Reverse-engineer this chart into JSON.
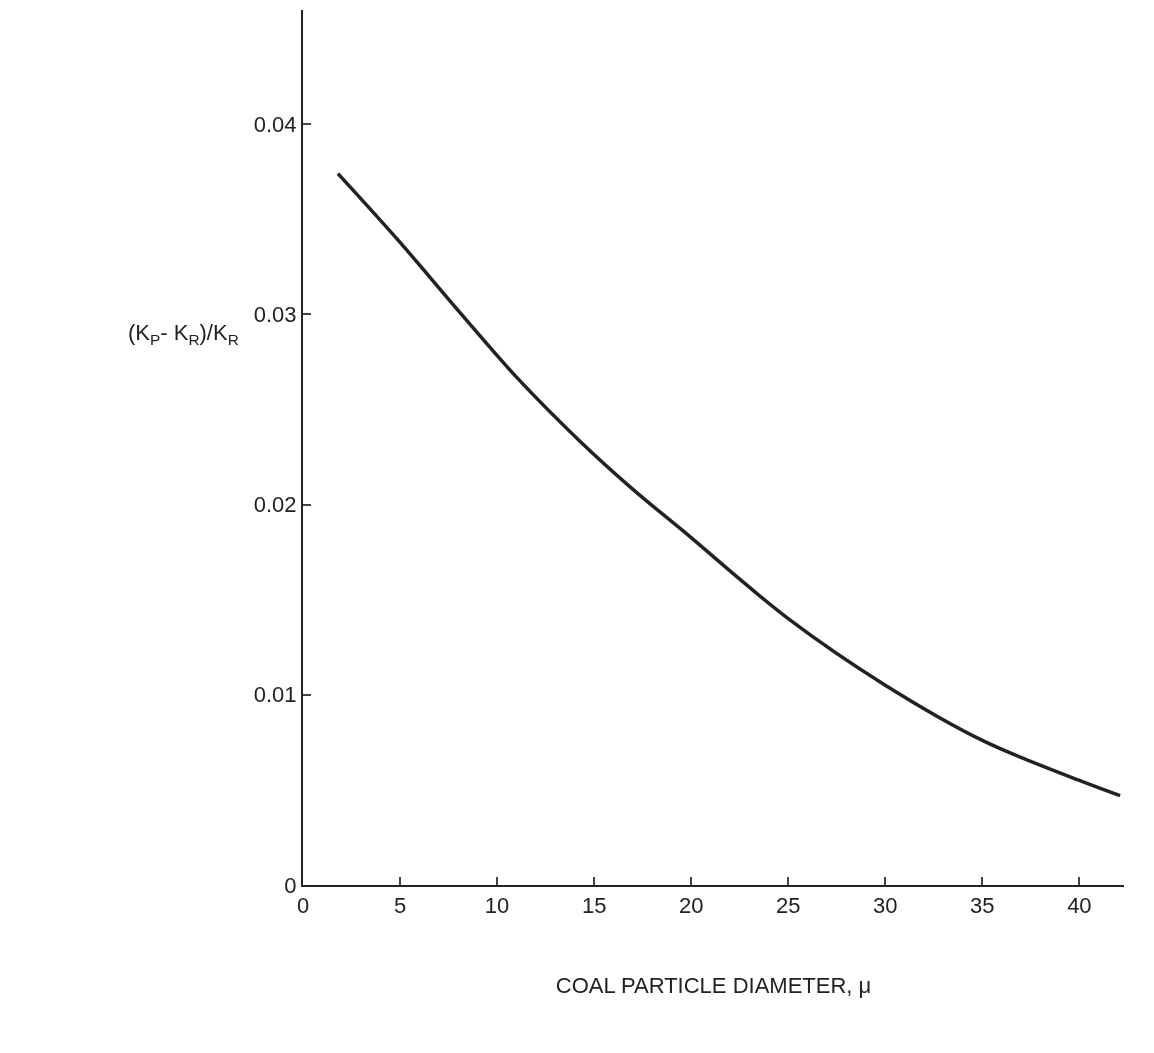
{
  "chart_data": {
    "type": "line",
    "xlabel": "COAL PARTICLE DIAMETER, μ",
    "ylabel": "(K$_{P}$- K$_{R}$)/K$_{R}$",
    "x": [
      1.8,
      4.9,
      8,
      11,
      14.2,
      17,
      19.6,
      25,
      30,
      35,
      40,
      42.1
    ],
    "series": [
      {
        "color": "#222222",
        "values": [
          0.0374,
          0.0339,
          0.0302,
          0.0267,
          0.0234,
          0.0208,
          0.0186,
          0.014,
          0.0105,
          0.0076,
          0.0055,
          0.0047
        ]
      }
    ],
    "xlim": [
      0,
      42.3
    ],
    "ylim": [
      0,
      0.046
    ],
    "xticks": [
      0,
      5,
      10,
      15,
      20,
      25,
      30,
      35,
      40
    ],
    "yticks": [
      0,
      0.01,
      0.02,
      0.03,
      0.04
    ],
    "grid": false,
    "marker": "none",
    "line_style": "solid"
  }
}
